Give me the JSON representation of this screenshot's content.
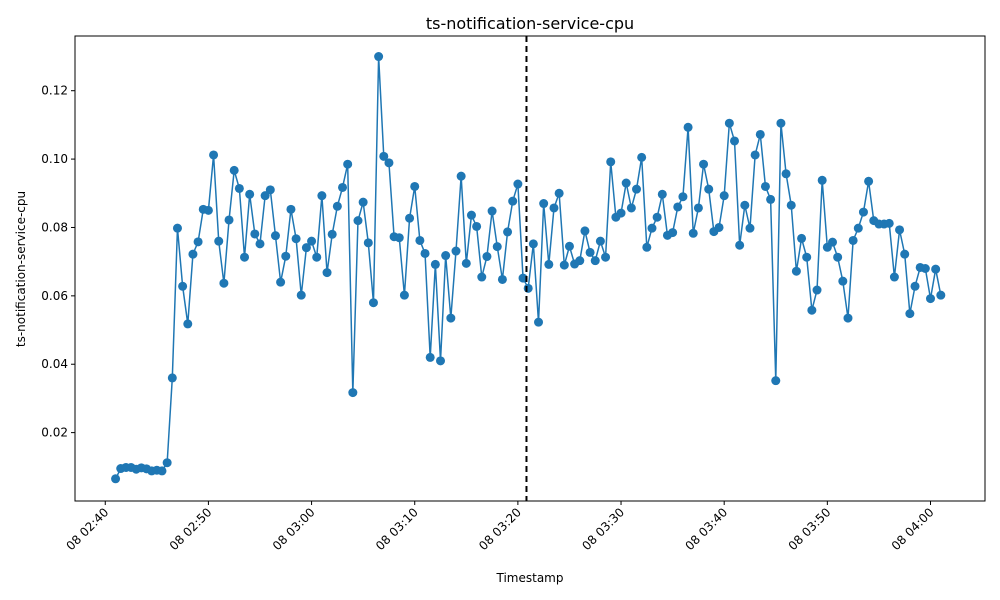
{
  "chart_data": {
    "type": "line",
    "title": "ts-notification-service-cpu",
    "xlabel": "Timestamp",
    "ylabel": "ts-notification-service-cpu",
    "x_start": "2024-01-08T02:41:00",
    "x_step_minutes": 0.5,
    "x_ticks": [
      "08 02:40",
      "08 02:50",
      "08 03:00",
      "08 03:10",
      "08 03:20",
      "08 03:30",
      "08 03:40",
      "08 03:50",
      "08 04:00"
    ],
    "y_ticks": [
      "0.02",
      "0.04",
      "0.06",
      "0.08",
      "0.10",
      "0.12"
    ],
    "ylim": [
      0.0,
      0.136
    ],
    "grid": false,
    "series_color": "#1f77b4",
    "marker": "circle",
    "vertical_line": {
      "x": "2024-01-08T03:20:50",
      "style": "dashed",
      "color": "#000000"
    },
    "values": [
      0.0065,
      0.0095,
      0.0098,
      0.0098,
      0.0093,
      0.0097,
      0.0094,
      0.0088,
      0.009,
      0.0088,
      0.0112,
      0.036,
      0.0798,
      0.0628,
      0.0518,
      0.0722,
      0.0758,
      0.0853,
      0.085,
      0.1012,
      0.076,
      0.0637,
      0.0822,
      0.0967,
      0.0914,
      0.0713,
      0.0897,
      0.0781,
      0.0752,
      0.0893,
      0.091,
      0.0776,
      0.064,
      0.0716,
      0.0853,
      0.0767,
      0.0602,
      0.0741,
      0.076,
      0.0713,
      0.0893,
      0.0668,
      0.078,
      0.0862,
      0.0917,
      0.0985,
      0.0317,
      0.082,
      0.0874,
      0.0755,
      0.058,
      0.13,
      0.1008,
      0.0989,
      0.0773,
      0.077,
      0.0602,
      0.0827,
      0.092,
      0.0762,
      0.0724,
      0.042,
      0.0692,
      0.041,
      0.0718,
      0.0535,
      0.0731,
      0.095,
      0.0695,
      0.0836,
      0.0803,
      0.0655,
      0.0715,
      0.0848,
      0.0744,
      0.0648,
      0.0787,
      0.0877,
      0.0927,
      0.0652,
      0.0622,
      0.0752,
      0.0523,
      0.087,
      0.0692,
      0.0857,
      0.09,
      0.069,
      0.0745,
      0.0693,
      0.0703,
      0.079,
      0.0727,
      0.0703,
      0.076,
      0.0713,
      0.0992,
      0.083,
      0.0842,
      0.093,
      0.0857,
      0.0912,
      0.1005,
      0.0742,
      0.0798,
      0.083,
      0.0897,
      0.0777,
      0.0785,
      0.086,
      0.089,
      0.1093,
      0.0783,
      0.0857,
      0.0985,
      0.0912,
      0.0788,
      0.08,
      0.0893,
      0.1105,
      0.1053,
      0.0748,
      0.0865,
      0.0798,
      0.1012,
      0.1072,
      0.092,
      0.0882,
      0.0352,
      0.1105,
      0.0957,
      0.0865,
      0.0672,
      0.0768,
      0.0713,
      0.0558,
      0.0617,
      0.0938,
      0.0742,
      0.0757,
      0.0713,
      0.0643,
      0.0535,
      0.0762,
      0.0798,
      0.0845,
      0.0935,
      0.082,
      0.081,
      0.081,
      0.0812,
      0.0655,
      0.0793,
      0.0722,
      0.0548,
      0.0628,
      0.0683,
      0.068,
      0.0592,
      0.0678,
      0.0602
    ]
  }
}
